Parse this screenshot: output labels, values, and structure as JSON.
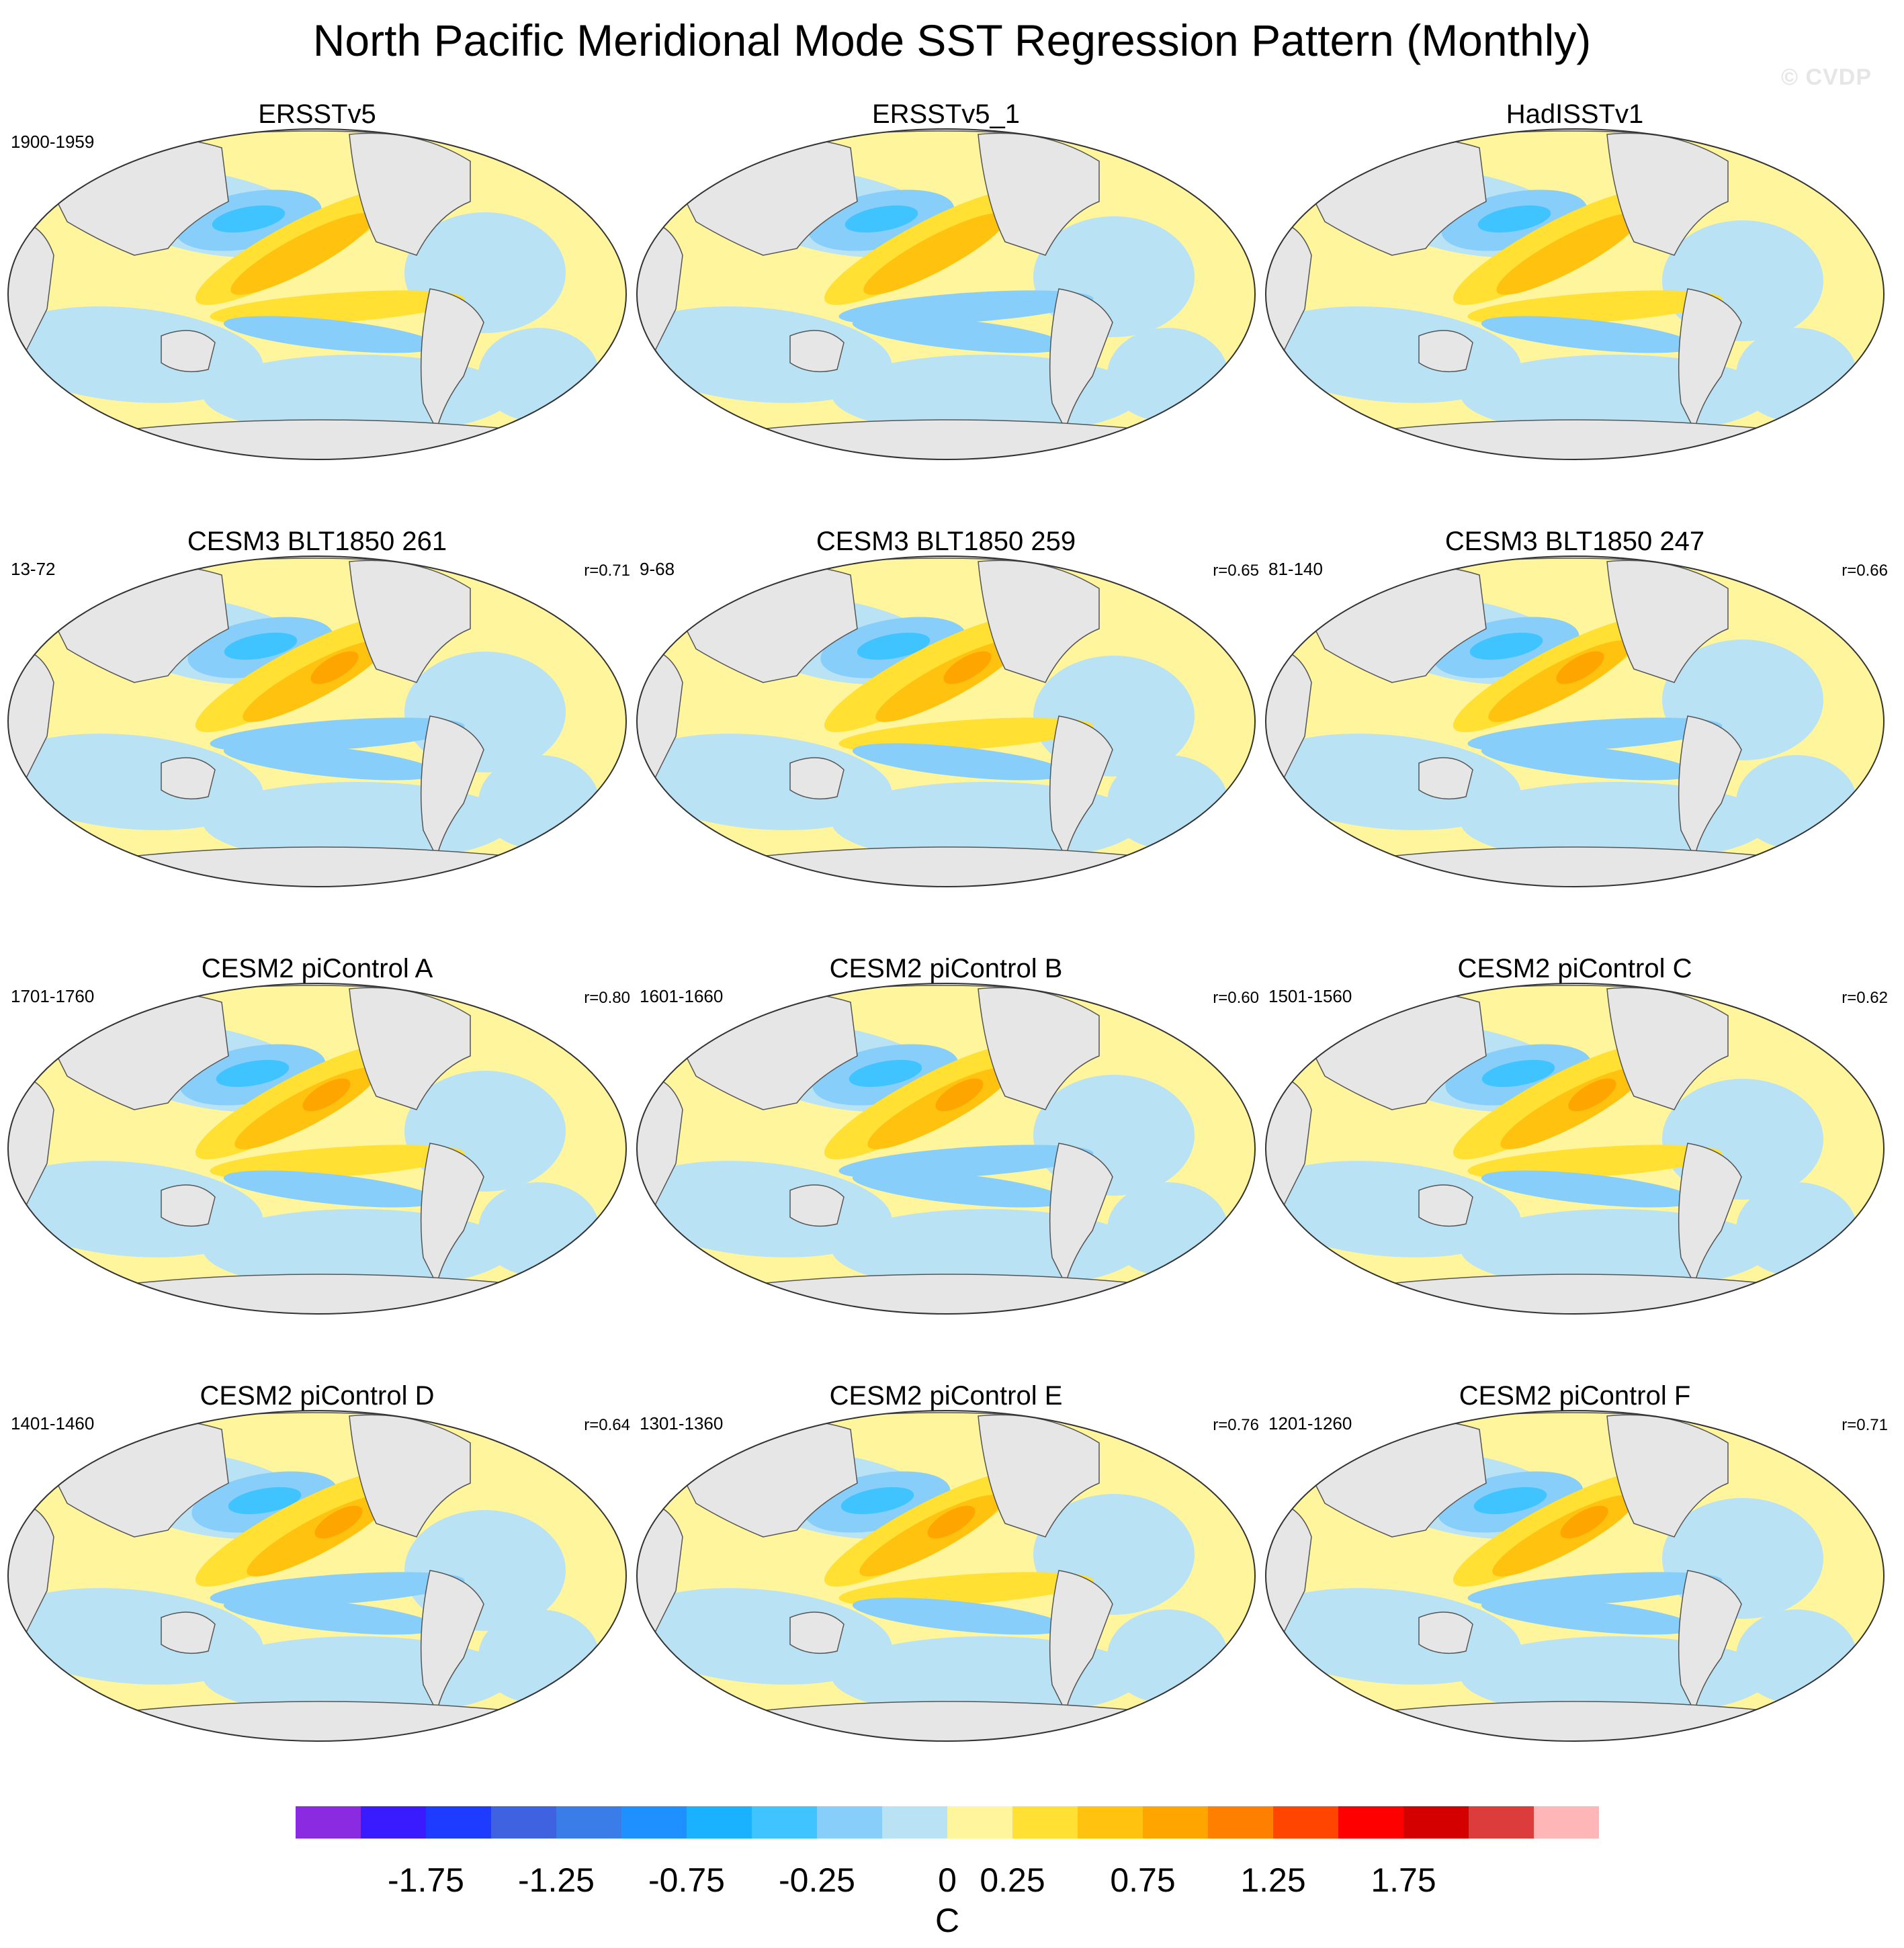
{
  "figure": {
    "title": "North Pacific Meridional Mode SST Regression Pattern (Monthly)",
    "copyright": "© CVDP"
  },
  "panels": [
    {
      "name": "ERSSTv5",
      "years": "1900-1959",
      "r": "",
      "variant": 0
    },
    {
      "name": "ERSSTv5_1",
      "years": "",
      "r": "",
      "variant": 1
    },
    {
      "name": "HadISSTv1",
      "years": "",
      "r": "",
      "variant": 2
    },
    {
      "name": "CESM3 BLT1850 261",
      "years": "13-72",
      "r": "r=0.71",
      "variant": 3
    },
    {
      "name": "CESM3 BLT1850 259",
      "years": "9-68",
      "r": "r=0.65",
      "variant": 4
    },
    {
      "name": "CESM3 BLT1850 247",
      "years": "81-140",
      "r": "r=0.66",
      "variant": 5
    },
    {
      "name": "CESM2 piControl A",
      "years": "1701-1760",
      "r": "r=0.80",
      "variant": 6
    },
    {
      "name": "CESM2 piControl B",
      "years": "1601-1660",
      "r": "r=0.60",
      "variant": 7
    },
    {
      "name": "CESM2 piControl C",
      "years": "1501-1560",
      "r": "r=0.62",
      "variant": 8
    },
    {
      "name": "CESM2 piControl D",
      "years": "1401-1460",
      "r": "r=0.64",
      "variant": 9
    },
    {
      "name": "CESM2 piControl E",
      "years": "1301-1360",
      "r": "r=0.76",
      "variant": 10
    },
    {
      "name": "CESM2 piControl F",
      "years": "1201-1260",
      "r": "r=0.71",
      "variant": 11
    }
  ],
  "colorbar": {
    "unit": "C",
    "labels": [
      "-1.75",
      "-1.25",
      "-0.75",
      "-0.25",
      "0",
      "0.25",
      "0.75",
      "1.25",
      "1.75"
    ],
    "colors": [
      "#8a2be2",
      "#3a1aff",
      "#1e3cff",
      "#3f63e0",
      "#3a7ce8",
      "#1e90ff",
      "#1ab2ff",
      "#40c4ff",
      "#87cefa",
      "#b9e2f5",
      "#fff59d",
      "#ffe033",
      "#ffc20e",
      "#ffa500",
      "#ff7f00",
      "#ff4500",
      "#ff0000",
      "#d40000",
      "#dc3c3c",
      "#ffb6b6"
    ]
  }
}
